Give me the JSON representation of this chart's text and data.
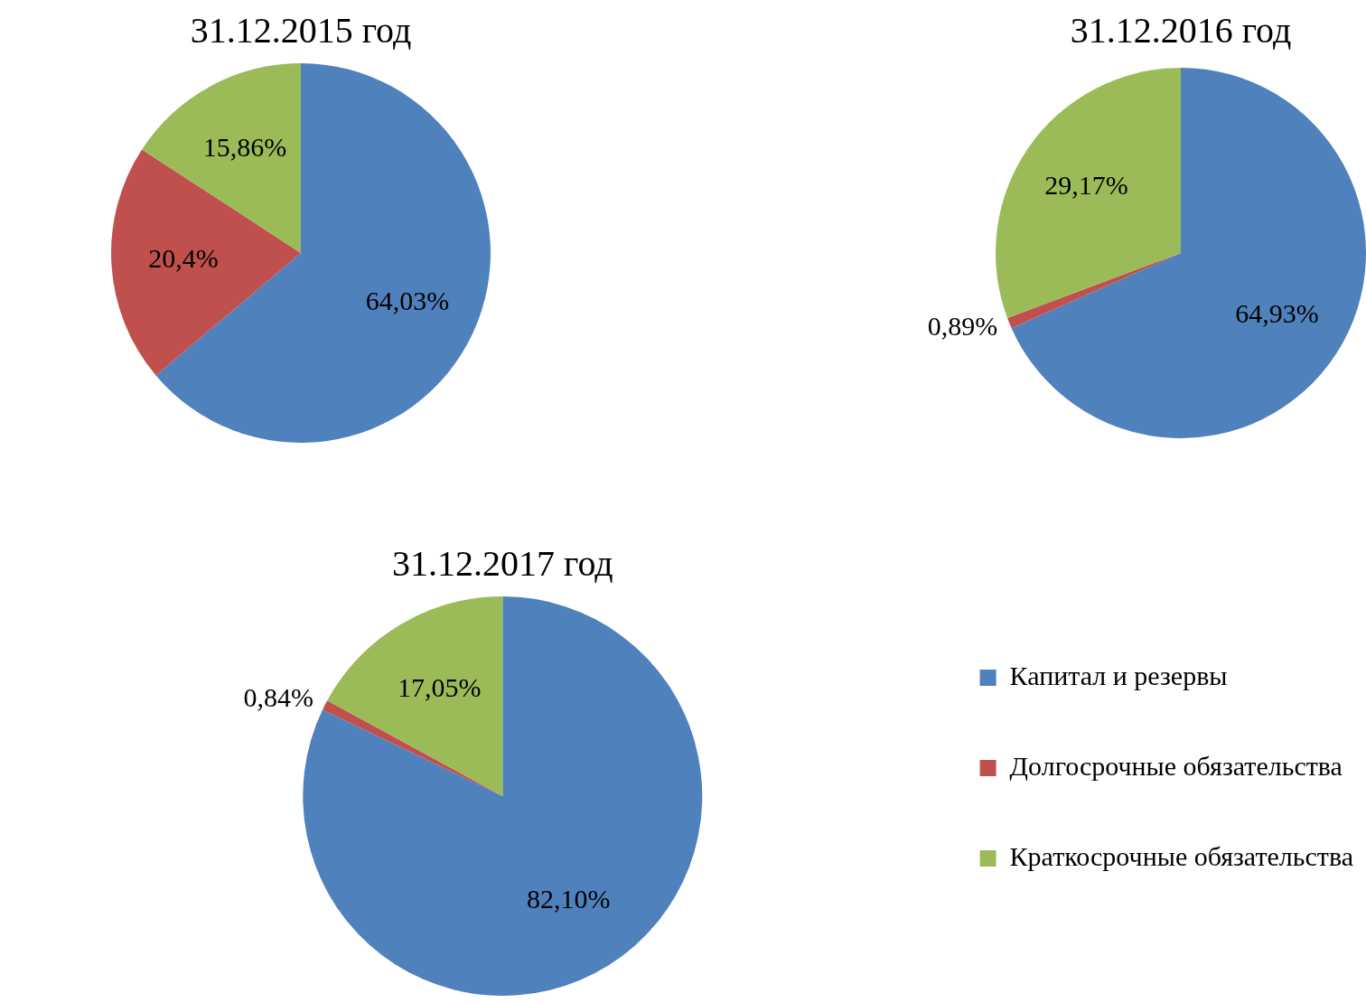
{
  "chart_data": [
    {
      "type": "pie",
      "title": "31.12.2015 год",
      "categories": [
        null,
        null,
        null
      ],
      "values": [
        64.03,
        20.4,
        15.86
      ],
      "colors": [
        "#4f81bd",
        "#c0504d",
        "#9bbb59"
      ],
      "value_labels": [
        "64,03%",
        "20,4%",
        "15,86%"
      ],
      "legend": false
    },
    {
      "type": "pie",
      "title": "31.12.2016 год",
      "categories": [
        null,
        null,
        null
      ],
      "values": [
        64.93,
        0.89,
        29.17
      ],
      "colors": [
        "#4f81bd",
        "#c0504d",
        "#9bbb59"
      ],
      "value_labels": [
        "64,93%",
        "0,89%",
        "29,17%"
      ],
      "legend": false
    },
    {
      "type": "pie",
      "title": "31.12.2017 год",
      "categories": [
        "Капитал и резервы",
        "Долгосрочные обязательства",
        "Краткосрочные обязательства"
      ],
      "values": [
        82.1,
        0.84,
        17.05
      ],
      "colors": [
        "#4f81bd",
        "#c0504d",
        "#9bbb59"
      ],
      "value_labels": [
        "82,10%",
        "0,84%",
        "17,05%"
      ],
      "legend": "right"
    }
  ]
}
